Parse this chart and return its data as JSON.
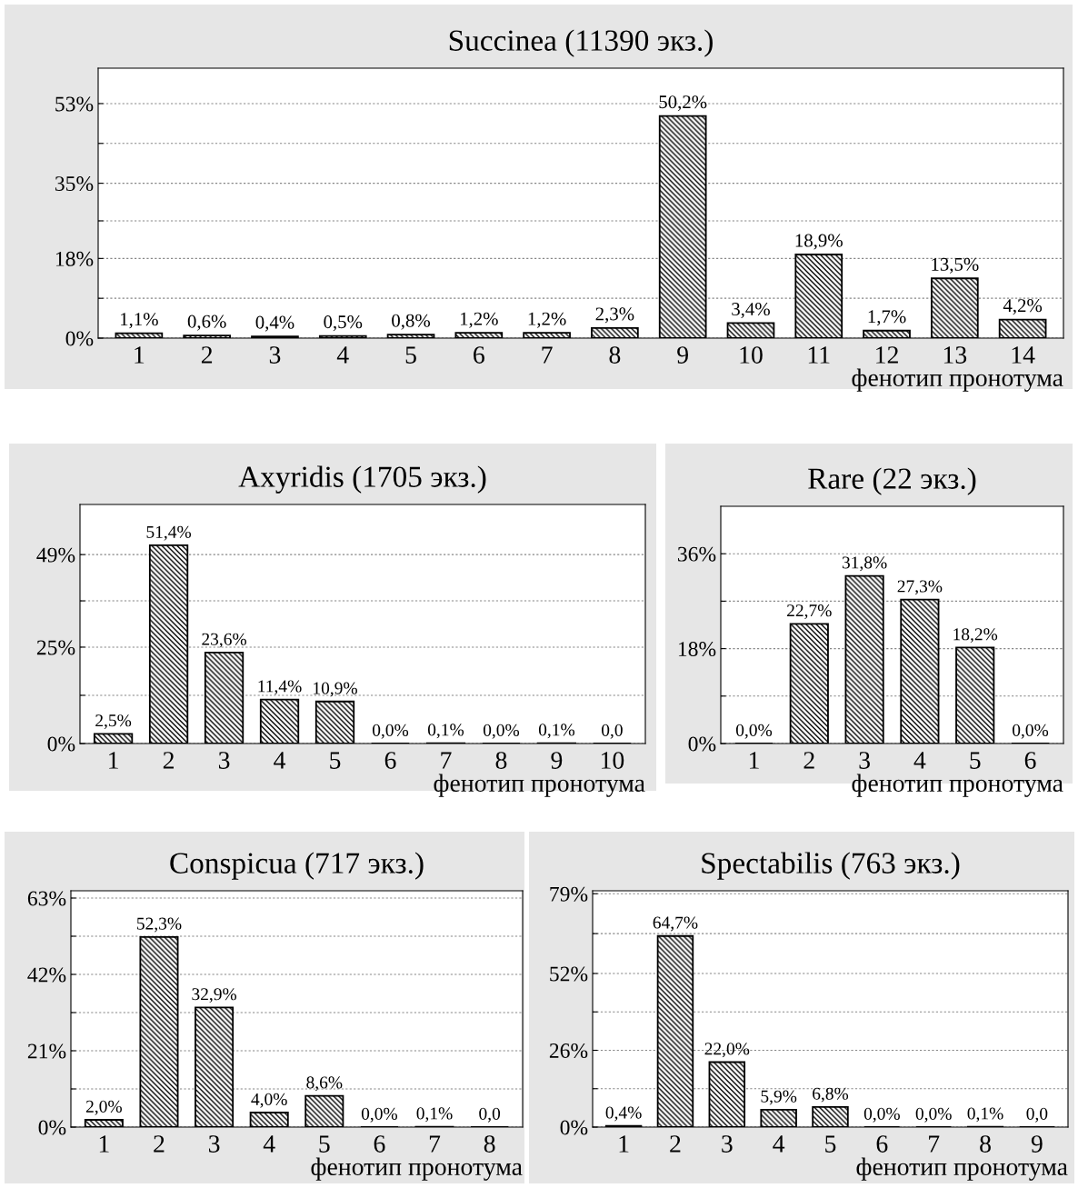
{
  "chart_data": [
    {
      "type": "bar",
      "title": "Succinea (11390 экз.)",
      "xlabel": "фенотип пронотума",
      "categories": [
        "1",
        "2",
        "3",
        "4",
        "5",
        "6",
        "7",
        "8",
        "9",
        "10",
        "11",
        "12",
        "13",
        "14"
      ],
      "values": [
        1.1,
        0.6,
        0.4,
        0.5,
        0.8,
        1.2,
        1.2,
        2.3,
        50.2,
        3.4,
        18.9,
        1.7,
        13.5,
        4.2
      ],
      "value_labels": [
        "1,1%",
        "0,6%",
        "0,4%",
        "0,5%",
        "0,8%",
        "1,2%",
        "1,2%",
        "2,3%",
        "50,2%",
        "3,4%",
        "18,9%",
        "1,7%",
        "13,5%",
        "4,2%"
      ],
      "color": "#000000",
      "ylim": [
        0,
        61
      ],
      "yticks": [
        {
          "value": 0,
          "label": "0%"
        },
        {
          "value": 9,
          "label": null
        },
        {
          "value": 18,
          "label": "18%"
        },
        {
          "value": 26.5,
          "label": null
        },
        {
          "value": 35,
          "label": "35%"
        },
        {
          "value": 44,
          "label": null
        },
        {
          "value": 53,
          "label": "53%"
        }
      ],
      "grid": "y",
      "legend": false
    },
    {
      "type": "bar",
      "title": "Axyridis (1705 экз.)",
      "xlabel": "фенотип пронотума",
      "categories": [
        "1",
        "2",
        "3",
        "4",
        "5",
        "6",
        "7",
        "8",
        "9",
        "10"
      ],
      "values": [
        2.5,
        51.4,
        23.6,
        11.4,
        10.9,
        0.0,
        0.1,
        0.0,
        0.1,
        0.0
      ],
      "value_labels": [
        "2,5%",
        "51,4%",
        "23,6%",
        "11,4%",
        "10,9%",
        "0,0%",
        "0,1%",
        "0,0%",
        "0,1%",
        "0,0"
      ],
      "color": "#000000",
      "ylim": [
        0,
        62
      ],
      "yticks": [
        {
          "value": 0,
          "label": "0%"
        },
        {
          "value": 12.5,
          "label": null
        },
        {
          "value": 25,
          "label": "25%"
        },
        {
          "value": 37,
          "label": null
        },
        {
          "value": 49,
          "label": "49%"
        }
      ],
      "grid": "y",
      "legend": false
    },
    {
      "type": "bar",
      "title": "Rare (22 экз.)",
      "xlabel": "фенотип пронотума",
      "categories": [
        "1",
        "2",
        "3",
        "4",
        "5",
        "6"
      ],
      "values": [
        0.0,
        22.7,
        31.8,
        27.3,
        18.2,
        0.0
      ],
      "value_labels": [
        "0,0%",
        "22,7%",
        "31,8%",
        "27,3%",
        "18,2%",
        "0,0%"
      ],
      "color": "#000000",
      "ylim": [
        0,
        45
      ],
      "yticks": [
        {
          "value": 0,
          "label": "0%"
        },
        {
          "value": 9,
          "label": null
        },
        {
          "value": 18,
          "label": "18%"
        },
        {
          "value": 27,
          "label": null
        },
        {
          "value": 36,
          "label": "36%"
        }
      ],
      "grid": "y",
      "legend": false
    },
    {
      "type": "bar",
      "title": "Conspicua (717 экз.)",
      "xlabel": "фенотип пронотума",
      "categories": [
        "1",
        "2",
        "3",
        "4",
        "5",
        "6",
        "7",
        "8"
      ],
      "values": [
        2.0,
        52.3,
        32.9,
        4.0,
        8.6,
        0.0,
        0.1,
        0.0
      ],
      "value_labels": [
        "2,0%",
        "52,3%",
        "32,9%",
        "4,0%",
        "8,6%",
        "0,0%",
        "0,1%",
        "0,0"
      ],
      "color": "#000000",
      "ylim": [
        0,
        65
      ],
      "yticks": [
        {
          "value": 0,
          "label": "0%"
        },
        {
          "value": 10.5,
          "label": null
        },
        {
          "value": 21,
          "label": "21%"
        },
        {
          "value": 31.5,
          "label": null
        },
        {
          "value": 42,
          "label": "42%"
        },
        {
          "value": 52.5,
          "label": null
        },
        {
          "value": 63,
          "label": "63%"
        }
      ],
      "grid": "y",
      "legend": false
    },
    {
      "type": "bar",
      "title": "Spectabilis (763 экз.)",
      "xlabel": "фенотип пронотума",
      "categories": [
        "1",
        "2",
        "3",
        "4",
        "5",
        "6",
        "7",
        "8",
        "9"
      ],
      "values": [
        0.4,
        64.7,
        22.0,
        5.9,
        6.8,
        0.0,
        0.0,
        0.1,
        0.0
      ],
      "value_labels": [
        "0,4%",
        "64,7%",
        "22,0%",
        "5,9%",
        "6,8%",
        "0,0%",
        "0,0%",
        "0,1%",
        "0,0"
      ],
      "color": "#000000",
      "ylim": [
        0,
        80
      ],
      "yticks": [
        {
          "value": 0,
          "label": "0%"
        },
        {
          "value": 13,
          "label": null
        },
        {
          "value": 26,
          "label": "26%"
        },
        {
          "value": 39,
          "label": null
        },
        {
          "value": 52,
          "label": "52%"
        },
        {
          "value": 65.5,
          "label": null
        },
        {
          "value": 79,
          "label": "79%"
        }
      ],
      "grid": "y",
      "legend": false
    }
  ]
}
